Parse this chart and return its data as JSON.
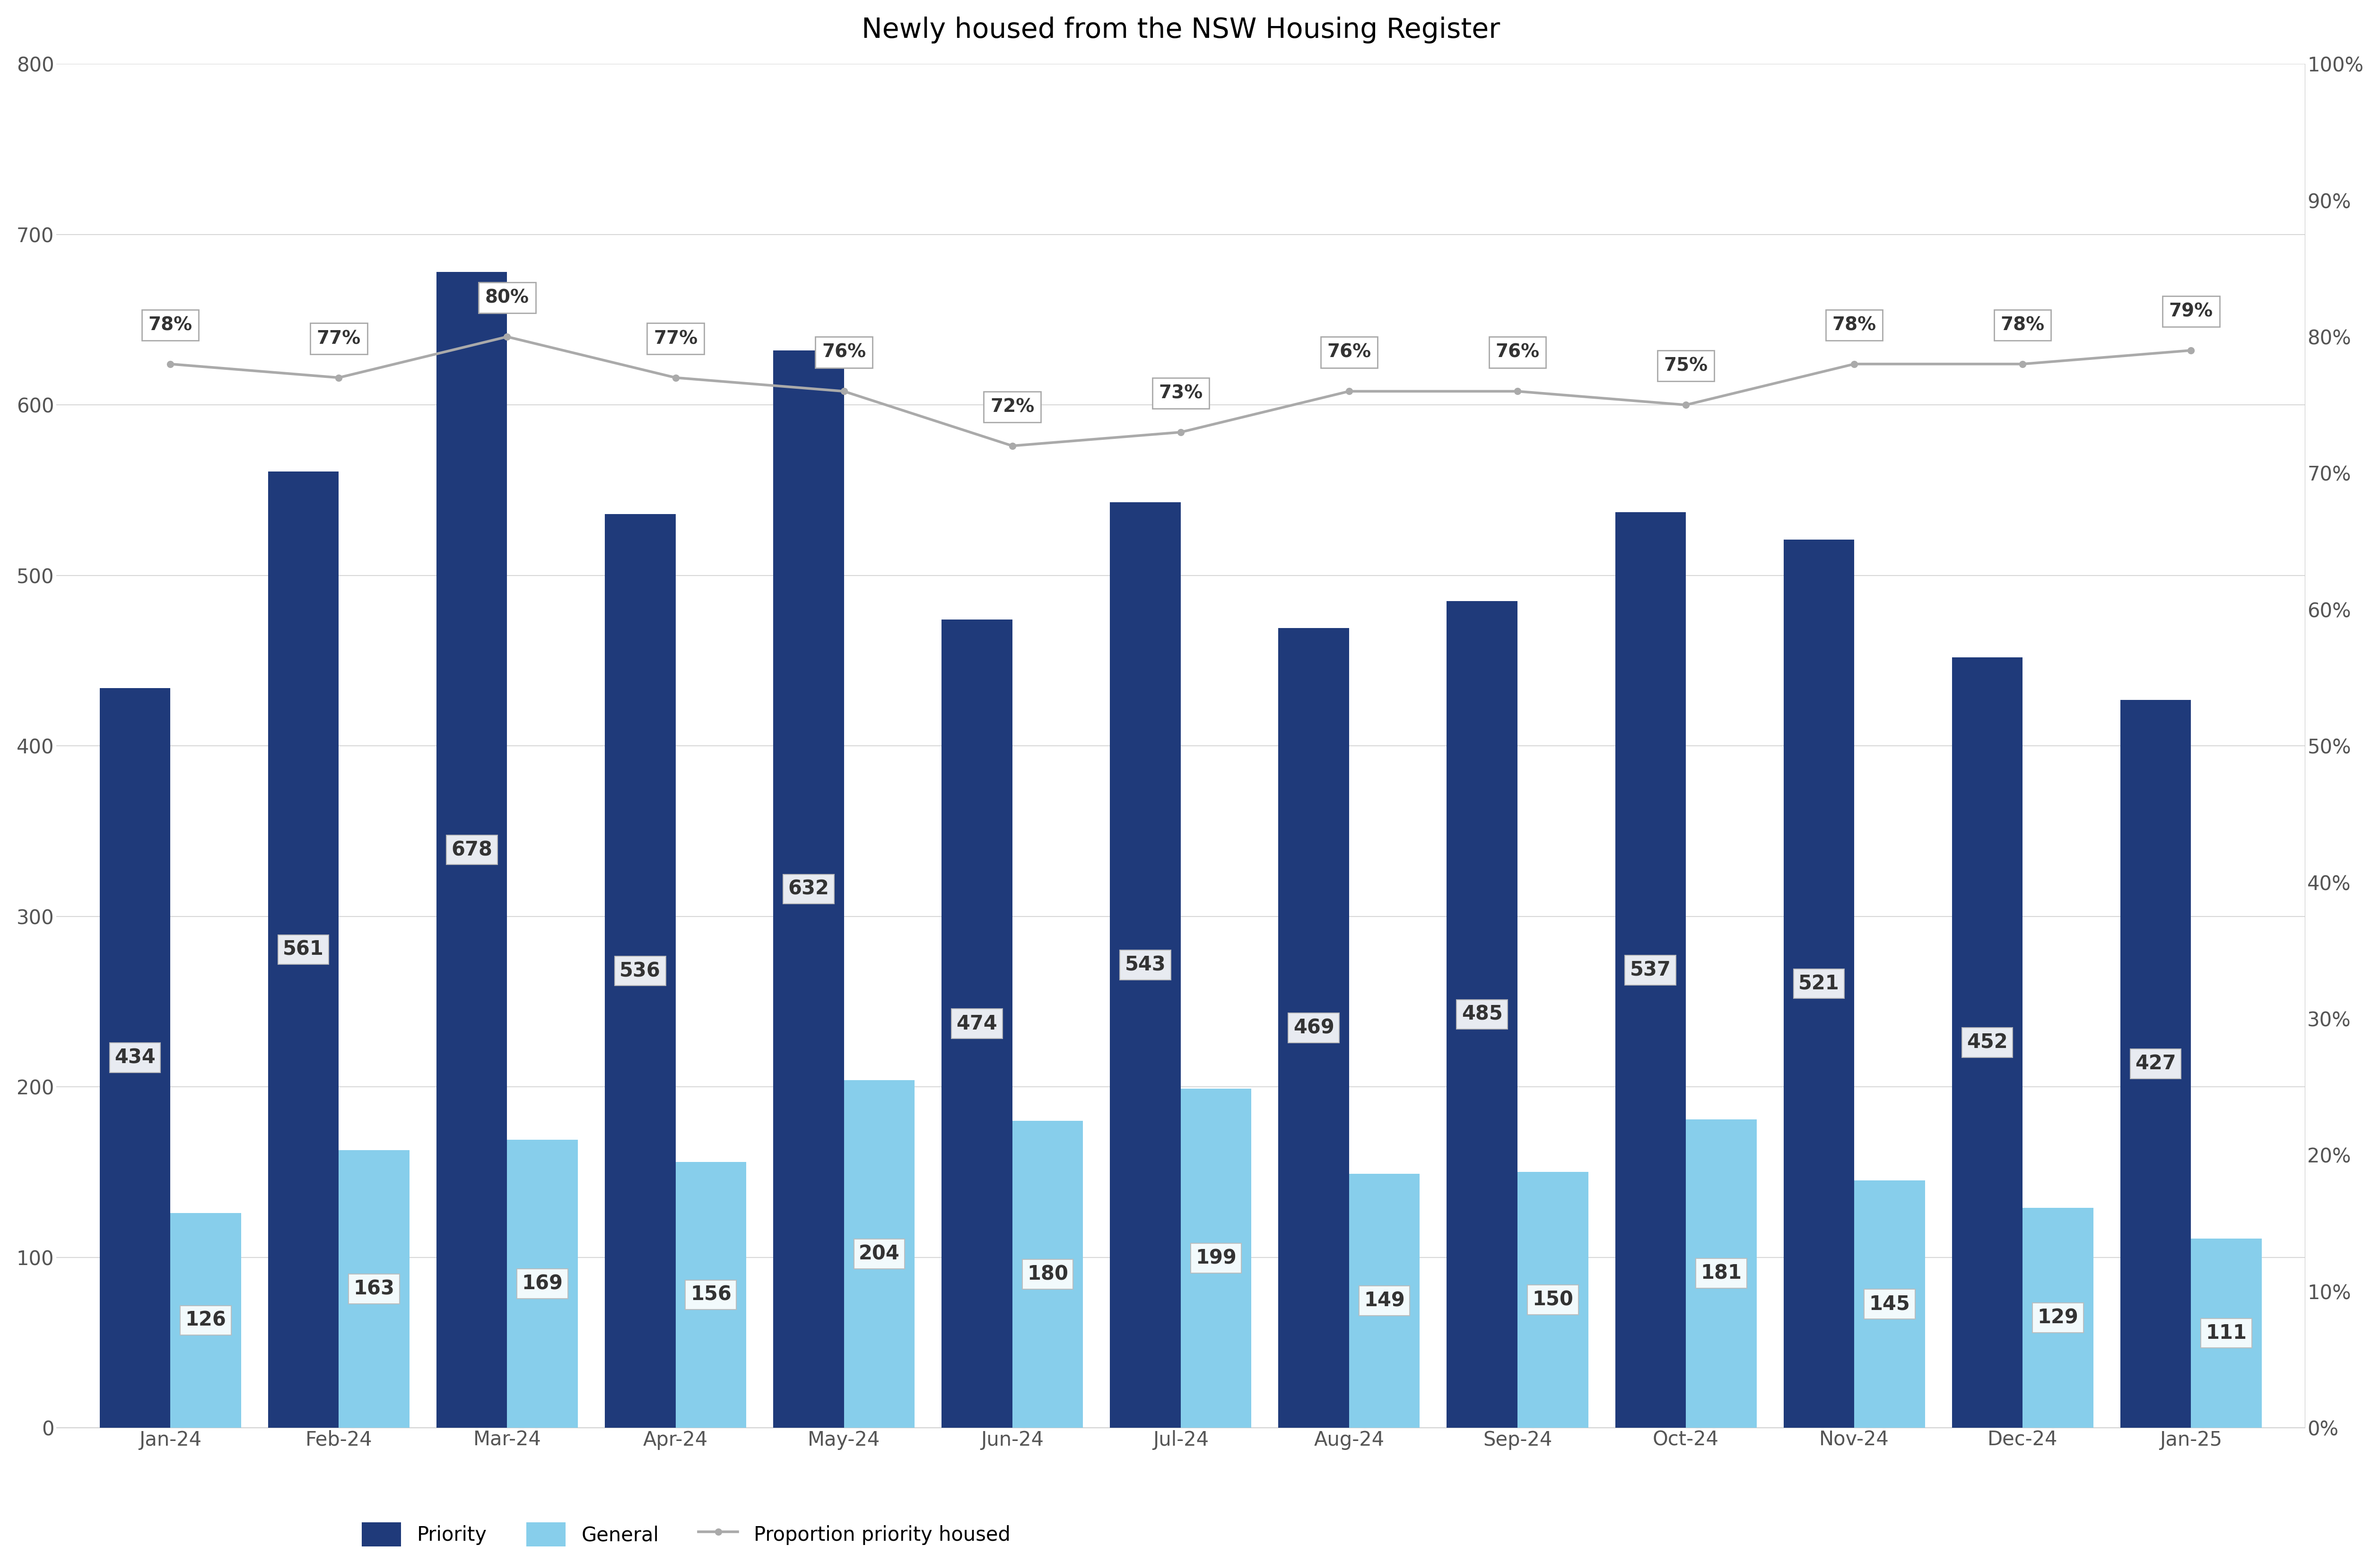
{
  "title": "Newly housed from the NSW Housing Register",
  "categories": [
    "Jan-24",
    "Feb-24",
    "Mar-24",
    "Apr-24",
    "May-24",
    "Jun-24",
    "Jul-24",
    "Aug-24",
    "Sep-24",
    "Oct-24",
    "Nov-24",
    "Dec-24",
    "Jan-25"
  ],
  "priority": [
    434,
    561,
    678,
    536,
    632,
    474,
    543,
    469,
    485,
    537,
    521,
    452,
    427
  ],
  "general": [
    126,
    163,
    169,
    156,
    204,
    180,
    199,
    149,
    150,
    181,
    145,
    129,
    111
  ],
  "proportion": [
    0.78,
    0.77,
    0.8,
    0.77,
    0.76,
    0.72,
    0.73,
    0.76,
    0.76,
    0.75,
    0.78,
    0.78,
    0.79
  ],
  "proportion_labels": [
    "78%",
    "77%",
    "80%",
    "77%",
    "76%",
    "72%",
    "73%",
    "76%",
    "76%",
    "75%",
    "78%",
    "78%",
    "79%"
  ],
  "priority_color": "#1f3a7a",
  "general_color": "#87ceeb",
  "line_color": "#aaaaaa",
  "bar_width": 0.42,
  "ylim_left": [
    0,
    800
  ],
  "ylim_right": [
    0,
    1.0
  ],
  "yticks_left": [
    0,
    100,
    200,
    300,
    400,
    500,
    600,
    700,
    800
  ],
  "yticks_right": [
    0.0,
    0.1,
    0.2,
    0.3,
    0.4,
    0.5,
    0.6,
    0.7,
    0.8,
    0.9,
    1.0
  ],
  "legend_labels": [
    "Priority",
    "General",
    "Proportion priority housed"
  ],
  "background_color": "#ffffff",
  "title_fontsize": 42,
  "tick_fontsize": 30,
  "legend_fontsize": 30,
  "label_fontsize": 30,
  "proportion_label_fontsize": 28
}
